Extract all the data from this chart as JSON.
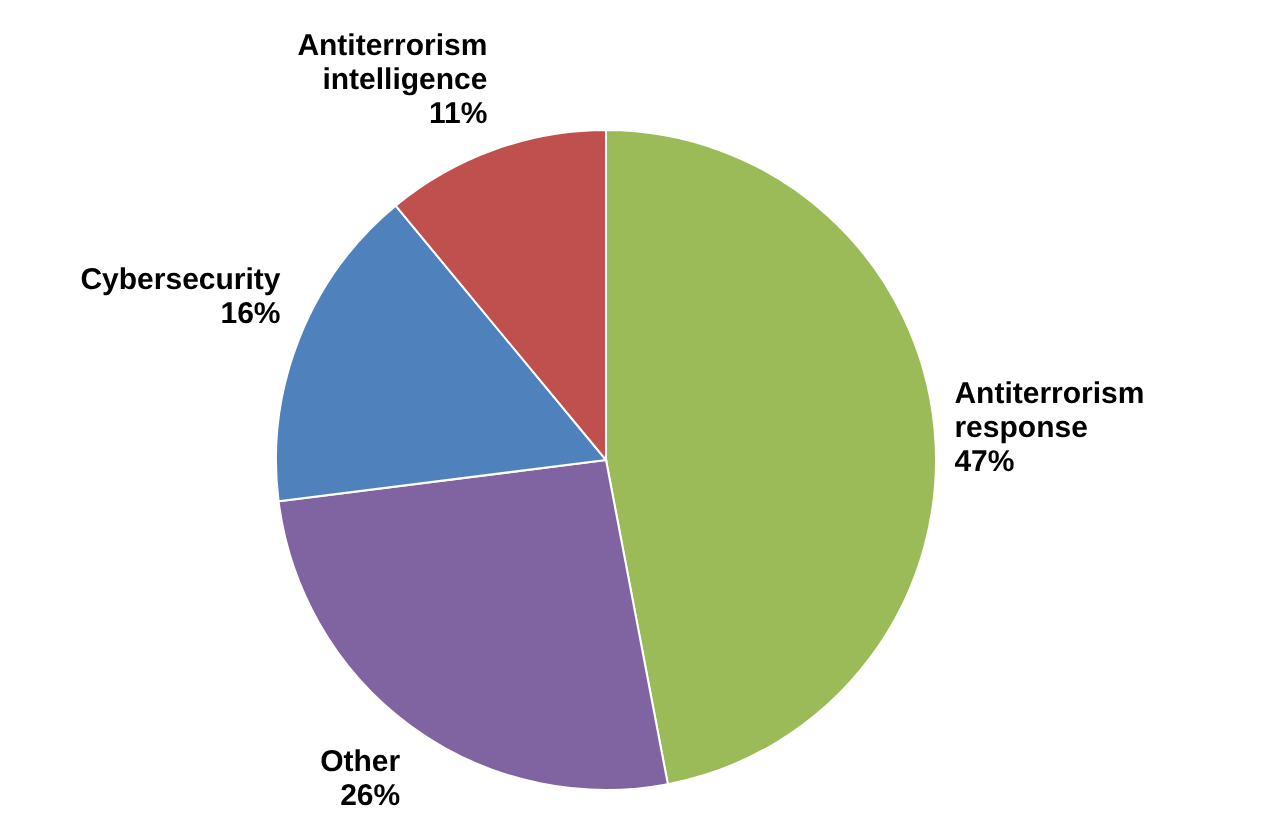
{
  "chart_data": {
    "type": "pie",
    "categories": [
      "Antiterrorism response",
      "Other",
      "Cybersecurity",
      "Antiterrorism intelligence"
    ],
    "values": [
      47,
      26,
      16,
      11
    ],
    "value_labels": [
      "47%",
      "26%",
      "16%",
      "11%"
    ],
    "colors": [
      "#9bbb59",
      "#8064a2",
      "#4f81bd",
      "#c0504d"
    ]
  }
}
